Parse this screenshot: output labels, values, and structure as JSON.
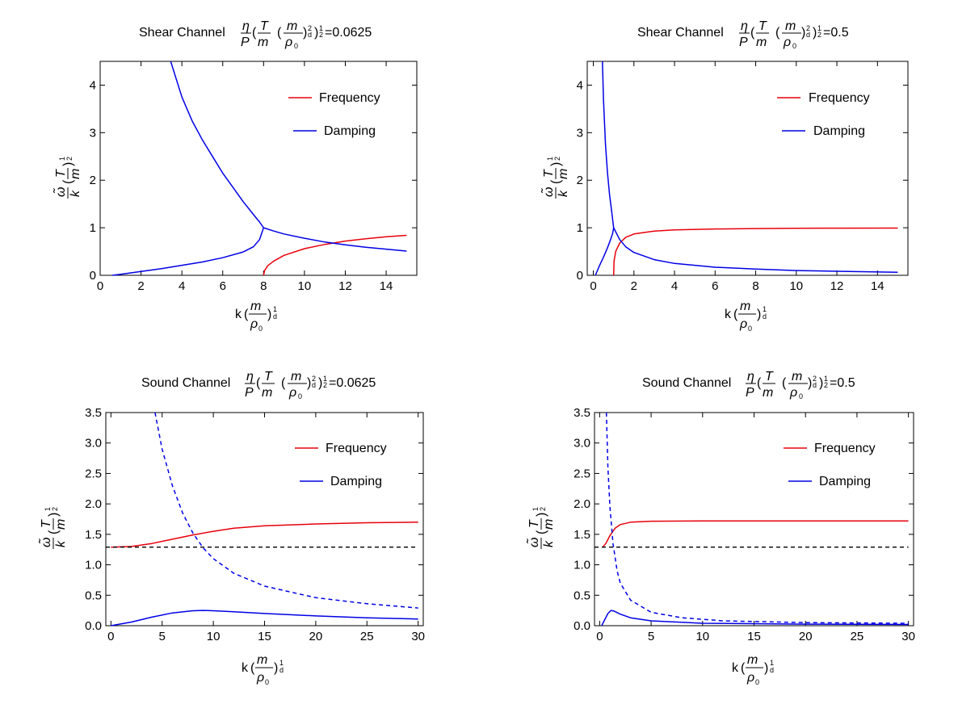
{
  "chart_data": [
    {
      "type": "line",
      "title_prefix": "Shear Channel",
      "title_value": "=0.0625",
      "xlabel": "k",
      "ylabel": "ω̃/k (T/m)^(1/2)",
      "xlim": [
        0,
        15.5
      ],
      "ylim": [
        0,
        4.5
      ],
      "xticks": [
        "0",
        "2",
        "4",
        "6",
        "8",
        "10",
        "12",
        "14"
      ],
      "xtick_values": [
        0,
        2,
        4,
        6,
        8,
        10,
        12,
        14
      ],
      "yticks": [
        "0",
        "1",
        "2",
        "3",
        "4"
      ],
      "ytick_values": [
        0,
        1,
        2,
        3,
        4
      ],
      "legend": [
        "Frequency",
        "Damping"
      ],
      "series": [
        {
          "name": "Frequency",
          "color": "#e8000b",
          "dash": "",
          "x": [
            8,
            8.05,
            8.2,
            8.5,
            9,
            10,
            11,
            12,
            13,
            14,
            15
          ],
          "y": [
            0,
            0.1,
            0.2,
            0.3,
            0.42,
            0.56,
            0.65,
            0.72,
            0.77,
            0.81,
            0.84
          ]
        },
        {
          "name": "Damping upper",
          "color": "#0000e6",
          "dash": "",
          "x": [
            3.45,
            4,
            4.5,
            5,
            5.5,
            6,
            6.5,
            7,
            7.5,
            7.8,
            8
          ],
          "y": [
            4.5,
            3.75,
            3.25,
            2.85,
            2.5,
            2.15,
            1.85,
            1.55,
            1.28,
            1.12,
            1.0
          ]
        },
        {
          "name": "Damping lower",
          "color": "#0000e6",
          "dash": "",
          "x": [
            0.6,
            1,
            2,
            3,
            4,
            5,
            6,
            7,
            7.5,
            7.8,
            8
          ],
          "y": [
            0,
            0.02,
            0.08,
            0.14,
            0.21,
            0.28,
            0.37,
            0.49,
            0.6,
            0.75,
            1.0
          ]
        },
        {
          "name": "Damping",
          "color": "#0000e6",
          "dash": "",
          "x": [
            8,
            8.5,
            9,
            10,
            11,
            12,
            13,
            14,
            15
          ],
          "y": [
            1.0,
            0.93,
            0.87,
            0.78,
            0.7,
            0.64,
            0.59,
            0.55,
            0.51
          ]
        }
      ]
    },
    {
      "type": "line",
      "title_prefix": "Shear Channel",
      "title_value": "=0.5",
      "xlabel": "k",
      "ylabel": "ω̃/k (T/m)^(1/2)",
      "xlim": [
        -0.3,
        15.5
      ],
      "ylim": [
        0,
        4.5
      ],
      "xticks": [
        "0",
        "2",
        "4",
        "6",
        "8",
        "10",
        "12",
        "14"
      ],
      "xtick_values": [
        0,
        2,
        4,
        6,
        8,
        10,
        12,
        14
      ],
      "yticks": [
        "0",
        "1",
        "2",
        "3",
        "4"
      ],
      "ytick_values": [
        0,
        1,
        2,
        3,
        4
      ],
      "legend": [
        "Frequency",
        "Damping"
      ],
      "series": [
        {
          "name": "Frequency",
          "color": "#e8000b",
          "dash": "",
          "x": [
            1,
            1.02,
            1.1,
            1.3,
            1.6,
            2,
            3,
            4,
            6,
            8,
            10,
            12,
            15
          ],
          "y": [
            0,
            0.3,
            0.5,
            0.68,
            0.8,
            0.87,
            0.93,
            0.955,
            0.975,
            0.983,
            0.988,
            0.991,
            0.994
          ]
        },
        {
          "name": "Damping upper",
          "color": "#0000e6",
          "dash": "",
          "x": [
            0.45,
            0.5,
            0.6,
            0.7,
            0.8,
            0.9,
            0.95,
            1
          ],
          "y": [
            4.5,
            3.7,
            2.75,
            2.15,
            1.7,
            1.35,
            1.18,
            1.0
          ]
        },
        {
          "name": "Damping lower",
          "color": "#0000e6",
          "dash": "",
          "x": [
            0.1,
            0.3,
            0.5,
            0.7,
            0.85,
            0.95,
            1
          ],
          "y": [
            0,
            0.2,
            0.38,
            0.58,
            0.75,
            0.88,
            1.0
          ]
        },
        {
          "name": "Damping",
          "color": "#0000e6",
          "dash": "",
          "x": [
            1,
            1.3,
            1.6,
            2,
            3,
            4,
            6,
            8,
            10,
            12,
            15
          ],
          "y": [
            1.0,
            0.75,
            0.6,
            0.48,
            0.33,
            0.25,
            0.17,
            0.13,
            0.1,
            0.085,
            0.065
          ]
        }
      ]
    },
    {
      "type": "line",
      "title_prefix": "Sound Channel",
      "title_value": "=0.0625",
      "xlabel": "k",
      "ylabel": "ω̃/k (T/m)^(1/2)",
      "xlim": [
        -0.5,
        30.5
      ],
      "ylim": [
        0,
        3.5
      ],
      "xticks": [
        "0",
        "5",
        "10",
        "15",
        "20",
        "25",
        "30"
      ],
      "xtick_values": [
        0,
        5,
        10,
        15,
        20,
        25,
        30
      ],
      "yticks": [
        "0.0",
        "0.5",
        "1.0",
        "1.5",
        "2.0",
        "2.5",
        "3.0",
        "3.5"
      ],
      "ytick_values": [
        0,
        0.5,
        1,
        1.5,
        2,
        2.5,
        3,
        3.5
      ],
      "legend": [
        "Frequency",
        "Damping"
      ],
      "series": [
        {
          "name": "Frequency",
          "color": "#e8000b",
          "dash": "",
          "x": [
            0,
            2,
            4,
            6,
            8,
            10,
            12,
            15,
            20,
            25,
            30
          ],
          "y": [
            1.29,
            1.3,
            1.35,
            1.42,
            1.49,
            1.55,
            1.6,
            1.64,
            1.67,
            1.69,
            1.7
          ]
        },
        {
          "name": "Damping",
          "color": "#0000e6",
          "dash": "",
          "x": [
            0,
            2,
            4,
            6,
            8,
            9,
            10,
            12,
            15,
            20,
            25,
            30
          ],
          "y": [
            0,
            0.06,
            0.14,
            0.21,
            0.245,
            0.25,
            0.245,
            0.23,
            0.2,
            0.16,
            0.13,
            0.11
          ]
        },
        {
          "name": "Damping (dashed)",
          "color": "#0000e6",
          "dash": "5,4",
          "x": [
            4.3,
            5,
            6,
            7,
            8,
            9,
            10,
            12,
            15,
            20,
            25,
            30
          ],
          "y": [
            3.5,
            2.9,
            2.3,
            1.85,
            1.52,
            1.28,
            1.1,
            0.86,
            0.65,
            0.46,
            0.36,
            0.29
          ]
        },
        {
          "name": "Reference",
          "color": "#000000",
          "dash": "5,4",
          "x": [
            -0.5,
            30
          ],
          "y": [
            1.29,
            1.29
          ]
        }
      ]
    },
    {
      "type": "line",
      "title_prefix": "Sound Channel",
      "title_value": "=0.5",
      "xlabel": "k",
      "ylabel": "ω̃/k (T/m)^(1/2)",
      "xlim": [
        -0.5,
        30.5
      ],
      "ylim": [
        0,
        3.5
      ],
      "xticks": [
        "0",
        "5",
        "10",
        "15",
        "20",
        "25",
        "30"
      ],
      "xtick_values": [
        0,
        5,
        10,
        15,
        20,
        25,
        30
      ],
      "yticks": [
        "0.0",
        "0.5",
        "1.0",
        "1.5",
        "2.0",
        "2.5",
        "3.0",
        "3.5"
      ],
      "ytick_values": [
        0,
        0.5,
        1,
        1.5,
        2,
        2.5,
        3,
        3.5
      ],
      "legend": [
        "Frequency",
        "Damping"
      ],
      "series": [
        {
          "name": "Frequency",
          "color": "#e8000b",
          "dash": "",
          "x": [
            0.3,
            0.6,
            1,
            1.5,
            2,
            3,
            5,
            10,
            20,
            30
          ],
          "y": [
            1.29,
            1.35,
            1.48,
            1.6,
            1.66,
            1.7,
            1.715,
            1.72,
            1.72,
            1.72
          ]
        },
        {
          "name": "Damping",
          "color": "#0000e6",
          "dash": "",
          "x": [
            0.2,
            0.5,
            0.8,
            1.1,
            1.4,
            2,
            3,
            5,
            10,
            20,
            30
          ],
          "y": [
            0,
            0.1,
            0.2,
            0.25,
            0.24,
            0.19,
            0.13,
            0.08,
            0.04,
            0.025,
            0.02
          ]
        },
        {
          "name": "Damping (dashed)",
          "color": "#0000e6",
          "dash": "5,4",
          "x": [
            0.65,
            0.8,
            1,
            1.3,
            1.7,
            2,
            3,
            5,
            8,
            12,
            20,
            30
          ],
          "y": [
            3.5,
            2.6,
            1.95,
            1.35,
            0.9,
            0.7,
            0.42,
            0.22,
            0.13,
            0.08,
            0.05,
            0.04
          ]
        },
        {
          "name": "Reference",
          "color": "#000000",
          "dash": "5,4",
          "x": [
            -0.5,
            30
          ],
          "y": [
            1.29,
            1.29
          ]
        }
      ]
    }
  ]
}
